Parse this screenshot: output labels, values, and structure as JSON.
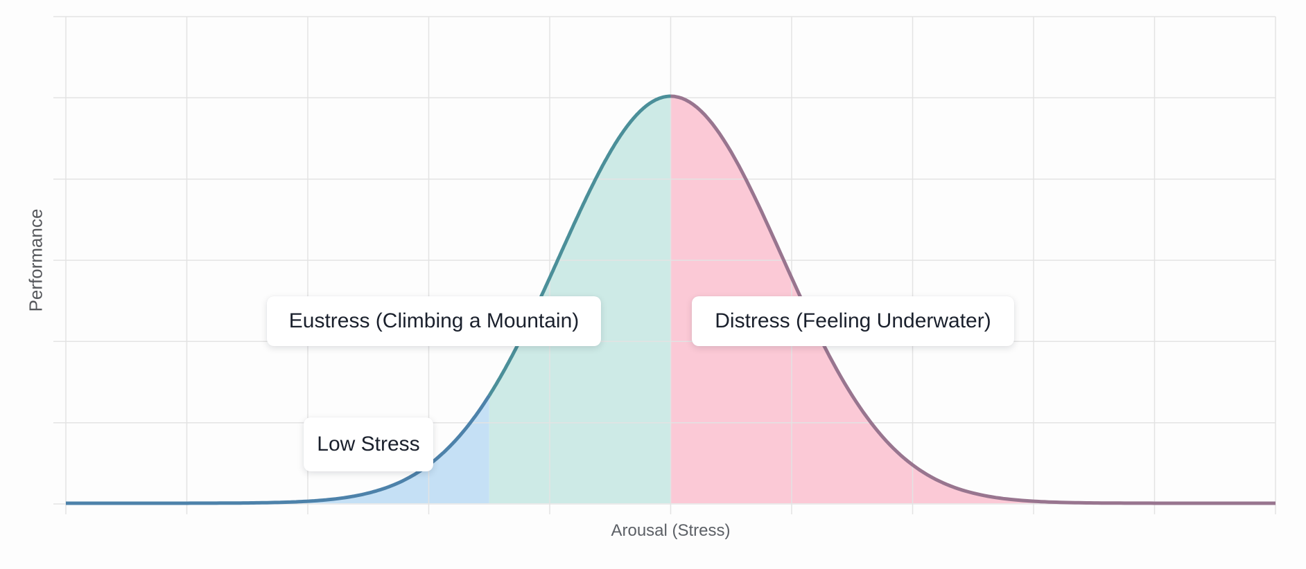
{
  "chart_data": {
    "type": "area",
    "title": "",
    "xlabel": "Arousal (Stress)",
    "ylabel": "Performance",
    "xlim": [
      0,
      10
    ],
    "ylim": [
      0,
      1.2
    ],
    "grid": true,
    "grid_color": "#e3e3e3",
    "background": "#fdfdfd",
    "axis_tick_labels": "none",
    "legend": "none",
    "curve": {
      "shape": "gaussian",
      "mean": 5,
      "sigma": 0.92,
      "amplitude": 1
    },
    "regions": [
      {
        "label": "Low Stress",
        "x_start": 0,
        "x_end": 3.5,
        "fill_color": "#c5e0f5",
        "line_color": "#4d82aa"
      },
      {
        "label": "Eustress (Climbing a Mountain)",
        "x_start": 3.5,
        "x_end": 5,
        "fill_color": "#cdeae6",
        "line_color": "#4b8f99"
      },
      {
        "label": "Distress (Feeling Underwater)",
        "x_start": 5,
        "x_end": 10,
        "fill_color": "#fbc9d6",
        "line_color": "#98758f"
      }
    ]
  }
}
